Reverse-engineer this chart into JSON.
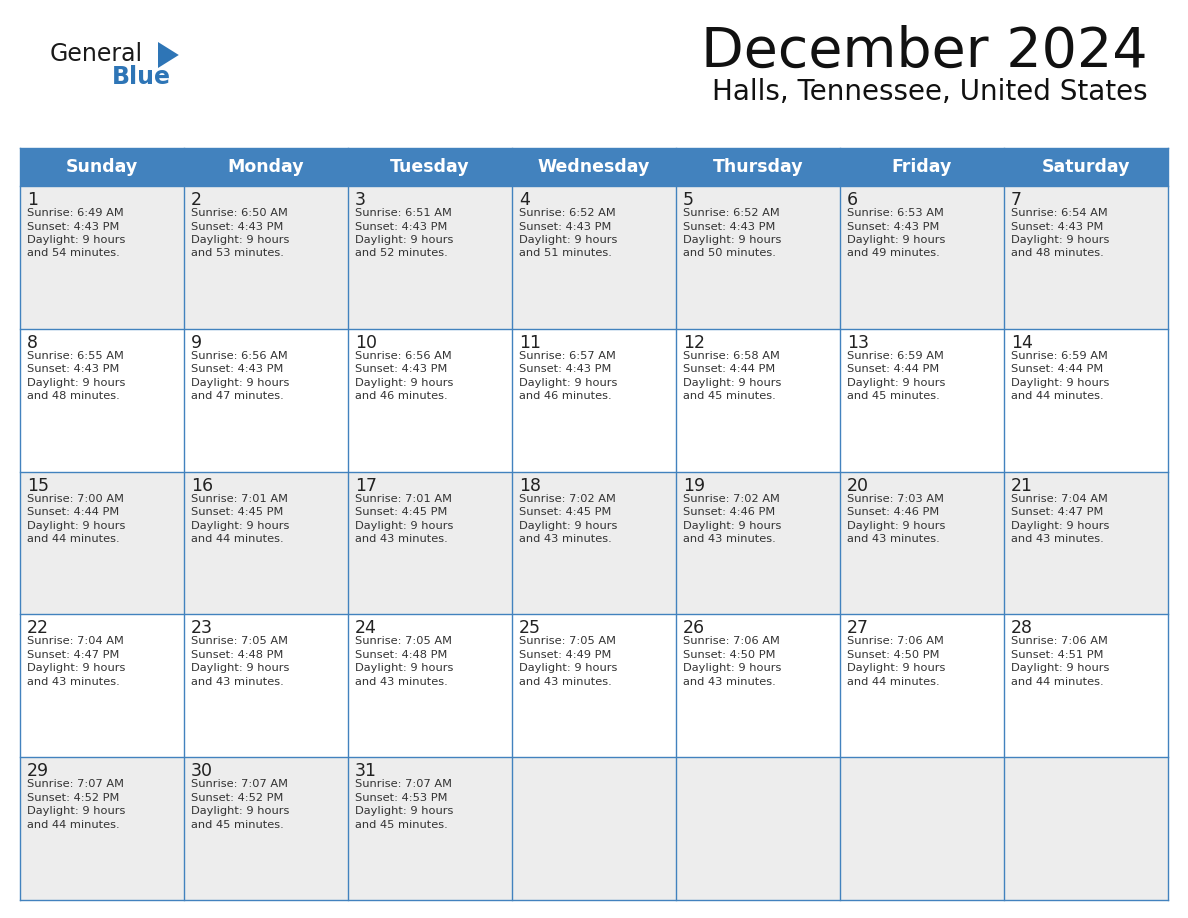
{
  "title": "December 2024",
  "subtitle": "Halls, Tennessee, United States",
  "header_color": "#4282BE",
  "header_text_color": "#FFFFFF",
  "day_names": [
    "Sunday",
    "Monday",
    "Tuesday",
    "Wednesday",
    "Thursday",
    "Friday",
    "Saturday"
  ],
  "grid_line_color": "#4282BE",
  "cell_bg_odd": "#EDEDED",
  "cell_bg_even": "#FFFFFF",
  "day_num_color": "#222222",
  "text_color": "#333333",
  "logo_general_color": "#1a1a1a",
  "logo_blue_color": "#2E75B6",
  "title_color": "#111111",
  "weeks": [
    [
      {
        "day": "1",
        "sunrise": "6:49 AM",
        "sunset": "4:43 PM",
        "daylight_hrs": "9 hours",
        "daylight_min": "and 54 minutes."
      },
      {
        "day": "2",
        "sunrise": "6:50 AM",
        "sunset": "4:43 PM",
        "daylight_hrs": "9 hours",
        "daylight_min": "and 53 minutes."
      },
      {
        "day": "3",
        "sunrise": "6:51 AM",
        "sunset": "4:43 PM",
        "daylight_hrs": "9 hours",
        "daylight_min": "and 52 minutes."
      },
      {
        "day": "4",
        "sunrise": "6:52 AM",
        "sunset": "4:43 PM",
        "daylight_hrs": "9 hours",
        "daylight_min": "and 51 minutes."
      },
      {
        "day": "5",
        "sunrise": "6:52 AM",
        "sunset": "4:43 PM",
        "daylight_hrs": "9 hours",
        "daylight_min": "and 50 minutes."
      },
      {
        "day": "6",
        "sunrise": "6:53 AM",
        "sunset": "4:43 PM",
        "daylight_hrs": "9 hours",
        "daylight_min": "and 49 minutes."
      },
      {
        "day": "7",
        "sunrise": "6:54 AM",
        "sunset": "4:43 PM",
        "daylight_hrs": "9 hours",
        "daylight_min": "and 48 minutes."
      }
    ],
    [
      {
        "day": "8",
        "sunrise": "6:55 AM",
        "sunset": "4:43 PM",
        "daylight_hrs": "9 hours",
        "daylight_min": "and 48 minutes."
      },
      {
        "day": "9",
        "sunrise": "6:56 AM",
        "sunset": "4:43 PM",
        "daylight_hrs": "9 hours",
        "daylight_min": "and 47 minutes."
      },
      {
        "day": "10",
        "sunrise": "6:56 AM",
        "sunset": "4:43 PM",
        "daylight_hrs": "9 hours",
        "daylight_min": "and 46 minutes."
      },
      {
        "day": "11",
        "sunrise": "6:57 AM",
        "sunset": "4:43 PM",
        "daylight_hrs": "9 hours",
        "daylight_min": "and 46 minutes."
      },
      {
        "day": "12",
        "sunrise": "6:58 AM",
        "sunset": "4:44 PM",
        "daylight_hrs": "9 hours",
        "daylight_min": "and 45 minutes."
      },
      {
        "day": "13",
        "sunrise": "6:59 AM",
        "sunset": "4:44 PM",
        "daylight_hrs": "9 hours",
        "daylight_min": "and 45 minutes."
      },
      {
        "day": "14",
        "sunrise": "6:59 AM",
        "sunset": "4:44 PM",
        "daylight_hrs": "9 hours",
        "daylight_min": "and 44 minutes."
      }
    ],
    [
      {
        "day": "15",
        "sunrise": "7:00 AM",
        "sunset": "4:44 PM",
        "daylight_hrs": "9 hours",
        "daylight_min": "and 44 minutes."
      },
      {
        "day": "16",
        "sunrise": "7:01 AM",
        "sunset": "4:45 PM",
        "daylight_hrs": "9 hours",
        "daylight_min": "and 44 minutes."
      },
      {
        "day": "17",
        "sunrise": "7:01 AM",
        "sunset": "4:45 PM",
        "daylight_hrs": "9 hours",
        "daylight_min": "and 43 minutes."
      },
      {
        "day": "18",
        "sunrise": "7:02 AM",
        "sunset": "4:45 PM",
        "daylight_hrs": "9 hours",
        "daylight_min": "and 43 minutes."
      },
      {
        "day": "19",
        "sunrise": "7:02 AM",
        "sunset": "4:46 PM",
        "daylight_hrs": "9 hours",
        "daylight_min": "and 43 minutes."
      },
      {
        "day": "20",
        "sunrise": "7:03 AM",
        "sunset": "4:46 PM",
        "daylight_hrs": "9 hours",
        "daylight_min": "and 43 minutes."
      },
      {
        "day": "21",
        "sunrise": "7:04 AM",
        "sunset": "4:47 PM",
        "daylight_hrs": "9 hours",
        "daylight_min": "and 43 minutes."
      }
    ],
    [
      {
        "day": "22",
        "sunrise": "7:04 AM",
        "sunset": "4:47 PM",
        "daylight_hrs": "9 hours",
        "daylight_min": "and 43 minutes."
      },
      {
        "day": "23",
        "sunrise": "7:05 AM",
        "sunset": "4:48 PM",
        "daylight_hrs": "9 hours",
        "daylight_min": "and 43 minutes."
      },
      {
        "day": "24",
        "sunrise": "7:05 AM",
        "sunset": "4:48 PM",
        "daylight_hrs": "9 hours",
        "daylight_min": "and 43 minutes."
      },
      {
        "day": "25",
        "sunrise": "7:05 AM",
        "sunset": "4:49 PM",
        "daylight_hrs": "9 hours",
        "daylight_min": "and 43 minutes."
      },
      {
        "day": "26",
        "sunrise": "7:06 AM",
        "sunset": "4:50 PM",
        "daylight_hrs": "9 hours",
        "daylight_min": "and 43 minutes."
      },
      {
        "day": "27",
        "sunrise": "7:06 AM",
        "sunset": "4:50 PM",
        "daylight_hrs": "9 hours",
        "daylight_min": "and 44 minutes."
      },
      {
        "day": "28",
        "sunrise": "7:06 AM",
        "sunset": "4:51 PM",
        "daylight_hrs": "9 hours",
        "daylight_min": "and 44 minutes."
      }
    ],
    [
      {
        "day": "29",
        "sunrise": "7:07 AM",
        "sunset": "4:52 PM",
        "daylight_hrs": "9 hours",
        "daylight_min": "and 44 minutes."
      },
      {
        "day": "30",
        "sunrise": "7:07 AM",
        "sunset": "4:52 PM",
        "daylight_hrs": "9 hours",
        "daylight_min": "and 45 minutes."
      },
      {
        "day": "31",
        "sunrise": "7:07 AM",
        "sunset": "4:53 PM",
        "daylight_hrs": "9 hours",
        "daylight_min": "and 45 minutes."
      },
      null,
      null,
      null,
      null
    ]
  ]
}
